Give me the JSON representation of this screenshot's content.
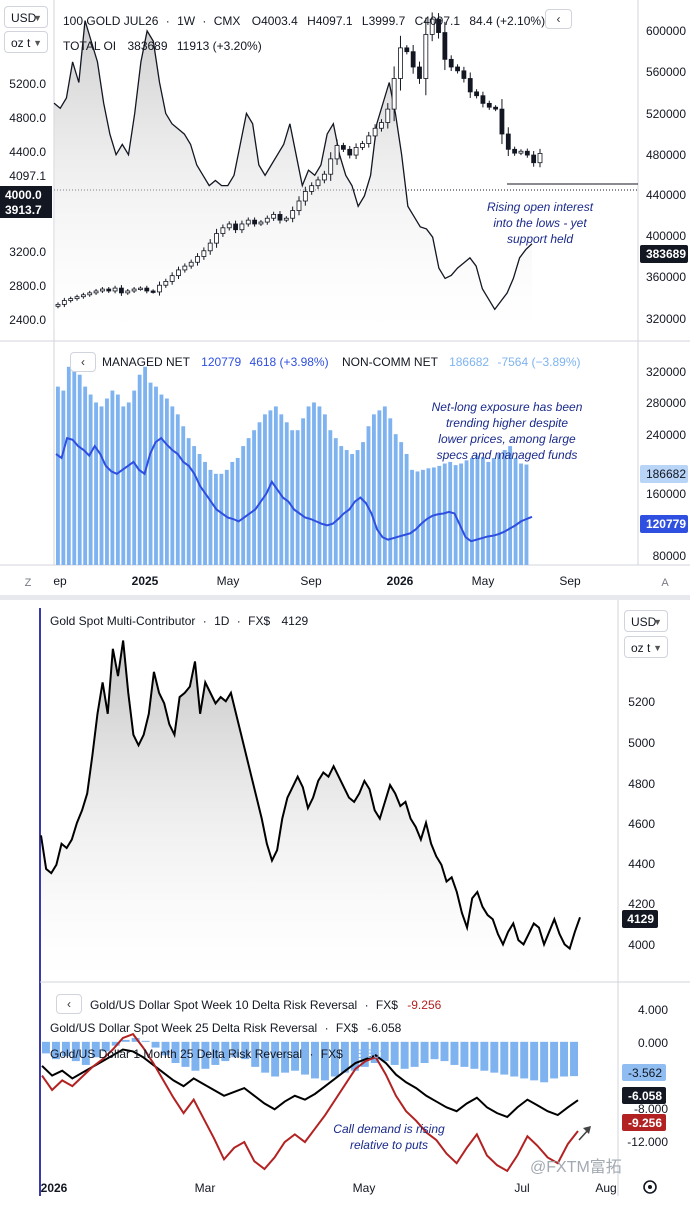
{
  "panel_top": {
    "unit_selector": {
      "currency": "USD",
      "unit": "oz t"
    },
    "symbol_header": {
      "name": "100 GOLD JUL26",
      "interval": "1W",
      "exchange": "CMX",
      "open": "O4003.4",
      "high": "H4097.1",
      "low": "L3999.7",
      "close": "C4097.1",
      "change": "84.4 (+2.10%)"
    },
    "oi_header": {
      "label": "TOTAL OI",
      "value": "383689",
      "change": "11913 (+3.20%)"
    },
    "cot_header": {
      "managed_label": "MANAGED NET",
      "managed_value": "120779",
      "managed_change": "4618 (+3.98%)",
      "noncomm_label": "NON-COMM NET",
      "noncomm_value": "186682",
      "noncomm_change": "-7564 (−3.89%)"
    },
    "annotation_oi": [
      "Rising open interest",
      "into the lows - yet",
      "support held"
    ],
    "annotation_net": [
      "Net-long exposure has been",
      "trending higher despite",
      "lower prices, among large",
      "specs and managed funds"
    ],
    "price_tag_top": "4097.1",
    "price_tag_current": "4000.0",
    "price_tag_current_sub": "3913.7",
    "oi_tag": "383689",
    "noncomm_tag": "186682",
    "managed_tag": "120779",
    "colors": {
      "price_line": "#000000",
      "oi_line": "#131722",
      "bars": "#7fb3f0",
      "managed": "#2f4fe0",
      "accent": "#1e53e5"
    },
    "bottom_left_glyph": "Z",
    "bottom_right_glyph": "A"
  },
  "panel_bottom": {
    "unit_selector": {
      "currency": "USD",
      "unit": "oz t"
    },
    "symbol_header": {
      "name": "Gold Spot Multi-Contributor",
      "interval": "1D",
      "source": "FX$",
      "value": "4129"
    },
    "price_tag": "4129",
    "rr_headers": [
      {
        "name": "Gold/US Dollar Spot Week 10 Delta Risk Reversal",
        "source": "FX$",
        "value": "-9.256"
      },
      {
        "name": "Gold/US Dollar Spot Week 25 Delta Risk Reversal",
        "source": "FX$",
        "value": "-6.058"
      },
      {
        "name": "Gold/US Dollar 1 Month 25 Delta Risk Reversal",
        "source": "FX$",
        "value": "-3.562"
      }
    ],
    "rr_tags": [
      "-3.562",
      "-6.058",
      "-9.256"
    ],
    "annotation": [
      "Call demand is rising",
      "relative to puts"
    ],
    "watermark": "@FXTM富拓",
    "colors": {
      "spot": "#000000",
      "rr10": "#b22222",
      "rr25w": "#000000",
      "rr1m": "#7fb3f0"
    },
    "settings_icon": "gear-icon"
  },
  "chart_data": [
    {
      "type": "line",
      "name": "100 GOLD JUL26 weekly with Total Open Interest",
      "x_ticks": [
        "ep",
        "2025",
        "May",
        "Sep",
        "2026",
        "May",
        "Sep"
      ],
      "y_ticks_left": [
        "5200.0",
        "4800.0",
        "4400.0",
        "4097.1",
        "3200.0",
        "2800.0",
        "2400.0"
      ],
      "y_ticks_right": [
        "600000",
        "560000",
        "520000",
        "480000",
        "440000",
        "400000",
        "360000",
        "320000"
      ],
      "ylim_left": [
        2200,
        5700
      ],
      "ylim_right": [
        300000,
        620000
      ],
      "series": [
        {
          "name": "TOTAL OI",
          "axis": "right",
          "values": [
            520000,
            515000,
            525000,
            560000,
            540000,
            600000,
            580000,
            560000,
            520000,
            490000,
            470000,
            480000,
            470000,
            510000,
            560000,
            590000,
            580000,
            540000,
            510000,
            500000,
            495000,
            490000,
            480000,
            460000,
            450000,
            440000,
            445000,
            440000,
            440000,
            450000,
            480000,
            510000,
            500000,
            460000,
            450000,
            460000,
            470000,
            480000,
            500000,
            470000,
            440000,
            455000,
            450000,
            460000,
            490000,
            500000,
            470000,
            450000,
            440000,
            420000,
            430000,
            450000,
            500000,
            520000,
            540000,
            510000,
            470000,
            420000,
            410000,
            400000,
            398000,
            390000,
            360000,
            350000,
            353000,
            360000,
            365000,
            370000,
            362000,
            340000,
            330000,
            320000,
            328000,
            336000,
            350000,
            370000,
            378000,
            383689
          ]
        },
        {
          "name": "100 GOLD JUL26",
          "axis": "left",
          "values": [
            2520,
            2560,
            2580,
            2600,
            2620,
            2640,
            2660,
            2680,
            2660,
            2690,
            2640,
            2660,
            2680,
            2690,
            2660,
            2650,
            2720,
            2760,
            2820,
            2880,
            2920,
            2960,
            3020,
            3080,
            3160,
            3260,
            3320,
            3360,
            3300,
            3360,
            3400,
            3360,
            3380,
            3420,
            3460,
            3400,
            3420,
            3500,
            3600,
            3700,
            3760,
            3820,
            3880,
            4040,
            4180,
            4140,
            4080,
            4160,
            4200,
            4280,
            4360,
            4420,
            4560,
            4880,
            5200,
            5160,
            5000,
            4880,
            5340,
            5500,
            5360,
            5080,
            5000,
            4960,
            4880,
            4740,
            4700,
            4620,
            4580,
            4560,
            4300,
            4140,
            4100,
            4120,
            4080,
            4000,
            4097
          ]
        }
      ]
    },
    {
      "type": "bar",
      "name": "Commitments of Traders",
      "y_ticks_right": [
        "320000",
        "280000",
        "240000",
        "200000",
        "160000",
        "120000",
        "80000"
      ],
      "ylim": [
        60000,
        340000
      ],
      "series": [
        {
          "name": "NON-COMM NET",
          "values": [
            285000,
            280000,
            310000,
            315000,
            300000,
            285000,
            275000,
            265000,
            260000,
            270000,
            280000,
            275000,
            260000,
            265000,
            280000,
            300000,
            310000,
            290000,
            285000,
            275000,
            270000,
            260000,
            250000,
            235000,
            220000,
            210000,
            200000,
            190000,
            180000,
            175000,
            175000,
            180000,
            190000,
            195000,
            210000,
            220000,
            230000,
            240000,
            250000,
            255000,
            260000,
            250000,
            240000,
            230000,
            230000,
            245000,
            260000,
            265000,
            260000,
            250000,
            230000,
            220000,
            210000,
            205000,
            200000,
            205000,
            215000,
            235000,
            250000,
            255000,
            260000,
            245000,
            225000,
            215000,
            200000,
            180000,
            178000,
            180000,
            182000,
            183000,
            185000,
            188000,
            190000,
            186000,
            188000,
            192000,
            195000,
            198000,
            196000,
            190000,
            195000,
            200000,
            205000,
            210000,
            195000,
            188000,
            186682
          ]
        },
        {
          "name": "MANAGED NET",
          "values": [
            200000,
            195000,
            220000,
            218000,
            210000,
            205000,
            198000,
            210000,
            200000,
            185000,
            178000,
            175000,
            180000,
            185000,
            190000,
            180000,
            175000,
            200000,
            215000,
            220000,
            212000,
            205000,
            200000,
            190000,
            185000,
            175000,
            160000,
            150000,
            140000,
            130000,
            125000,
            120000,
            118000,
            115000,
            120000,
            125000,
            130000,
            140000,
            150000,
            165000,
            155000,
            145000,
            140000,
            130000,
            125000,
            120000,
            118000,
            115000,
            112000,
            110000,
            112000,
            118000,
            125000,
            130000,
            140000,
            145000,
            138000,
            125000,
            105000,
            95000,
            92000,
            94000,
            96000,
            98000,
            100000,
            105000,
            112000,
            118000,
            122000,
            124000,
            125000,
            127000,
            125000,
            110000,
            95000,
            90000,
            92000,
            94000,
            96000,
            97000,
            99000,
            102000,
            106000,
            110000,
            115000,
            118000,
            120779
          ]
        }
      ]
    },
    {
      "type": "line",
      "name": "Gold Spot Multi-Contributor daily",
      "x_ticks": [
        "2026",
        "Mar",
        "May",
        "Jul",
        "Aug"
      ],
      "y_ticks_right": [
        "5200",
        "5000",
        "4800",
        "4600",
        "4400",
        "4200",
        "4000"
      ],
      "ylim": [
        3830,
        5500
      ],
      "series": [
        {
          "name": "Gold Spot Multi-Contributor",
          "values": [
            4520,
            4360,
            4340,
            4380,
            4480,
            4460,
            4500,
            4580,
            4640,
            4720,
            4900,
            5100,
            5250,
            5100,
            5410,
            5280,
            5450,
            5200,
            5000,
            4950,
            5000,
            5100,
            5300,
            5200,
            5150,
            5050,
            5000,
            5180,
            5200,
            5230,
            5350,
            5100,
            5250,
            5200,
            5150,
            5180,
            5160,
            5200,
            5100,
            5000,
            4900,
            4800,
            4700,
            4600,
            4480,
            4400,
            4450,
            4600,
            4700,
            4750,
            4800,
            4750,
            4650,
            4700,
            4780,
            4820,
            4800,
            4850,
            4800,
            4750,
            4700,
            4680,
            4720,
            4780,
            4740,
            4640,
            4600,
            4680,
            4760,
            4720,
            4660,
            4680,
            4600,
            4560,
            4500,
            4580,
            4480,
            4420,
            4380,
            4300,
            4320,
            4250,
            4150,
            4080,
            4220,
            4250,
            4180,
            4140,
            4120,
            4050,
            4000,
            4060,
            4100,
            4020,
            4000,
            4050,
            4100,
            4080,
            4000,
            4060,
            4120,
            4050,
            4000,
            3980,
            4060,
            4129
          ]
        }
      ]
    },
    {
      "type": "line",
      "name": "Gold/US Dollar Delta Risk Reversals",
      "y_ticks_right": [
        "4.000",
        "0.000",
        "-8.000",
        "-12.000"
      ],
      "ylim": [
        -16,
        6
      ],
      "series": [
        {
          "name": "Gold/US Dollar 1 Month 25 Delta Risk Reversal",
          "style": "histogram",
          "values": [
            -1.2,
            -1.8,
            -1.5,
            -2.0,
            -2.4,
            -1.6,
            -1.0,
            -0.4,
            0.2,
            0.4,
            0.1,
            -0.6,
            -1.4,
            -2.2,
            -2.6,
            -3.0,
            -2.8,
            -2.4,
            -2.0,
            -1.6,
            -1.8,
            -2.6,
            -3.2,
            -3.6,
            -3.2,
            -3.0,
            -3.4,
            -3.8,
            -4.0,
            -3.6,
            -3.2,
            -3.0,
            -2.6,
            -2.2,
            -2.0,
            -2.4,
            -2.8,
            -2.6,
            -2.2,
            -1.8,
            -2.0,
            -2.4,
            -2.6,
            -2.8,
            -3.0,
            -3.2,
            -3.4,
            -3.6,
            -3.8,
            -4.0,
            -4.2,
            -3.8,
            -3.6,
            -3.562
          ]
        },
        {
          "name": "Gold/US Dollar Spot Week 25 Delta Risk Reversal",
          "values": [
            -2.5,
            -3.5,
            -3.0,
            -3.8,
            -3.2,
            -2.6,
            -2.0,
            -1.4,
            -0.8,
            -1.0,
            -1.6,
            -2.4,
            -3.2,
            -4.0,
            -4.6,
            -3.8,
            -4.4,
            -5.0,
            -5.6,
            -5.2,
            -4.8,
            -5.6,
            -6.4,
            -7.0,
            -6.2,
            -5.6,
            -6.0,
            -5.4,
            -4.6,
            -3.8,
            -3.0,
            -2.2,
            -1.8,
            -1.4,
            -2.2,
            -3.4,
            -4.2,
            -4.8,
            -5.6,
            -6.2,
            -6.8,
            -7.2,
            -6.4,
            -5.8,
            -6.8,
            -7.4,
            -7.8,
            -6.8,
            -6.0,
            -6.6,
            -7.2,
            -7.6,
            -6.8,
            -6.058
          ]
        },
        {
          "name": "Gold/US Dollar Spot Week 10 Delta Risk Reversal",
          "values": [
            -3.5,
            -5.0,
            -4.0,
            -4.6,
            -3.6,
            -2.6,
            -1.8,
            -0.8,
            0.4,
            0.8,
            -0.6,
            -2.2,
            -4.0,
            -5.8,
            -7.4,
            -6.0,
            -8.0,
            -10.0,
            -12.2,
            -11.0,
            -10.4,
            -12.4,
            -13.2,
            -12.0,
            -10.4,
            -9.6,
            -10.4,
            -9.0,
            -7.6,
            -6.0,
            -4.4,
            -2.8,
            -2.0,
            -1.6,
            -3.4,
            -5.6,
            -7.2,
            -8.2,
            -9.4,
            -10.2,
            -11.6,
            -12.6,
            -11.0,
            -9.6,
            -11.8,
            -12.8,
            -13.4,
            -11.8,
            -9.8,
            -10.8,
            -12.0,
            -12.6,
            -10.6,
            -9.256
          ]
        }
      ]
    }
  ]
}
